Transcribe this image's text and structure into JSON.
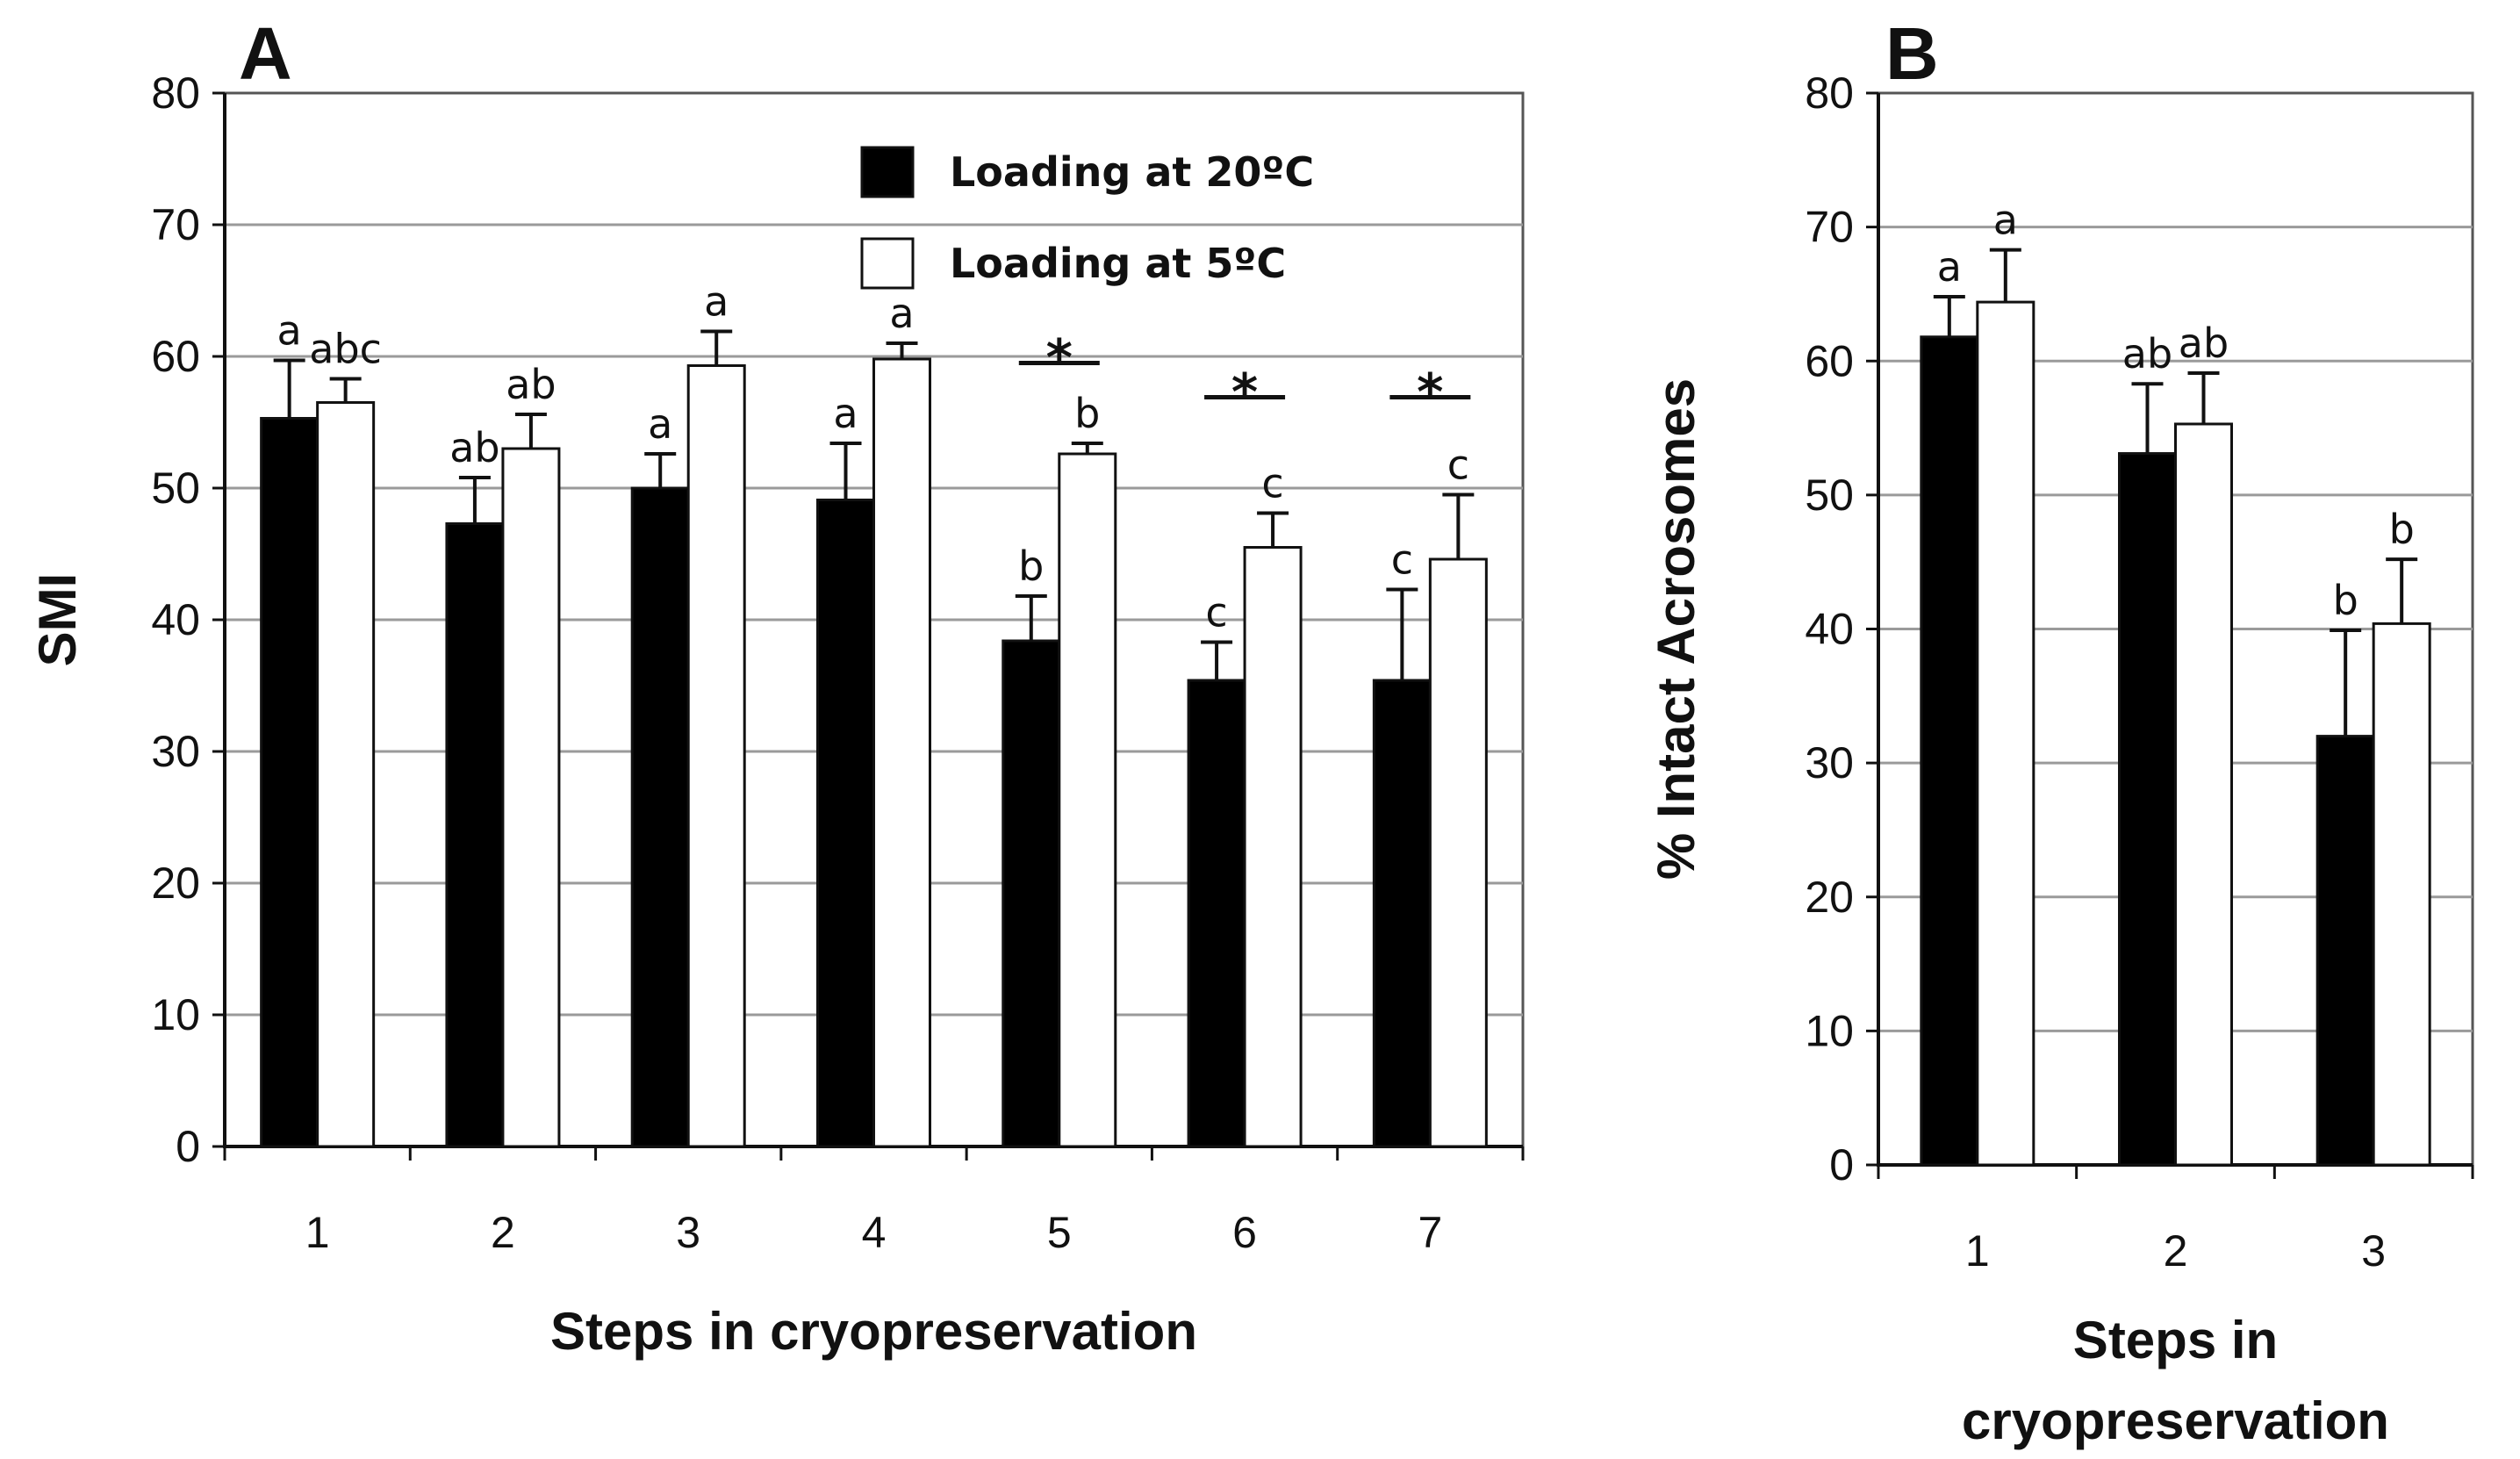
{
  "chart_data": [
    {
      "panel_label": "A",
      "type": "bar",
      "title": "",
      "xlabel": "Steps in cryopreservation",
      "ylabel": "SMI",
      "ylim": [
        0,
        80
      ],
      "yticks": [
        "0",
        "10",
        "20",
        "30",
        "40",
        "50",
        "60",
        "70",
        "80"
      ],
      "grid": true,
      "legend_position": "top-right",
      "categories": [
        "1",
        "2",
        "3",
        "4",
        "5",
        "6",
        "7"
      ],
      "series": [
        {
          "name": "Loading at 20ºC",
          "color": "#000000",
          "values": [
            55.3,
            47.3,
            50.0,
            49.1,
            38.4,
            35.4,
            35.4
          ],
          "errors": [
            4.4,
            3.5,
            2.6,
            4.3,
            3.4,
            2.9,
            6.9
          ],
          "letters": [
            "a",
            "ab",
            "a",
            "a",
            "b",
            "c",
            "c"
          ]
        },
        {
          "name": "Loading at 5ºC",
          "color": "#ffffff",
          "values": [
            56.5,
            53.0,
            59.3,
            59.8,
            52.6,
            45.5,
            44.6
          ],
          "errors": [
            1.8,
            2.6,
            2.6,
            1.2,
            0.8,
            2.6,
            4.9
          ],
          "letters": [
            "abc",
            "ab",
            "a",
            "a",
            "b",
            "c",
            "c"
          ]
        }
      ],
      "significance": [
        {
          "category": "5",
          "mark": "*",
          "level": 59.5
        },
        {
          "category": "6",
          "mark": "*",
          "level": 56.9
        },
        {
          "category": "7",
          "mark": "*",
          "level": 56.9
        }
      ]
    },
    {
      "panel_label": "B",
      "type": "bar",
      "title": "",
      "xlabel": "Steps in cryopreservation",
      "xlabel_lines": [
        "Steps in",
        "cryopreservation"
      ],
      "ylabel": "% Intact Acrosomes",
      "ylim": [
        0,
        80
      ],
      "yticks": [
        "0",
        "10",
        "20",
        "30",
        "40",
        "50",
        "60",
        "70",
        "80"
      ],
      "grid": true,
      "categories": [
        "1",
        "2",
        "3"
      ],
      "series": [
        {
          "name": "Loading at 20ºC",
          "color": "#000000",
          "values": [
            61.8,
            53.1,
            32.0
          ],
          "errors": [
            3.0,
            5.2,
            7.9
          ],
          "letters": [
            "a",
            "ab",
            "b"
          ]
        },
        {
          "name": "Loading at 5ºC",
          "color": "#ffffff",
          "values": [
            64.4,
            55.3,
            40.4
          ],
          "errors": [
            3.9,
            3.8,
            4.8
          ],
          "letters": [
            "a",
            "ab",
            "b"
          ]
        }
      ]
    }
  ]
}
